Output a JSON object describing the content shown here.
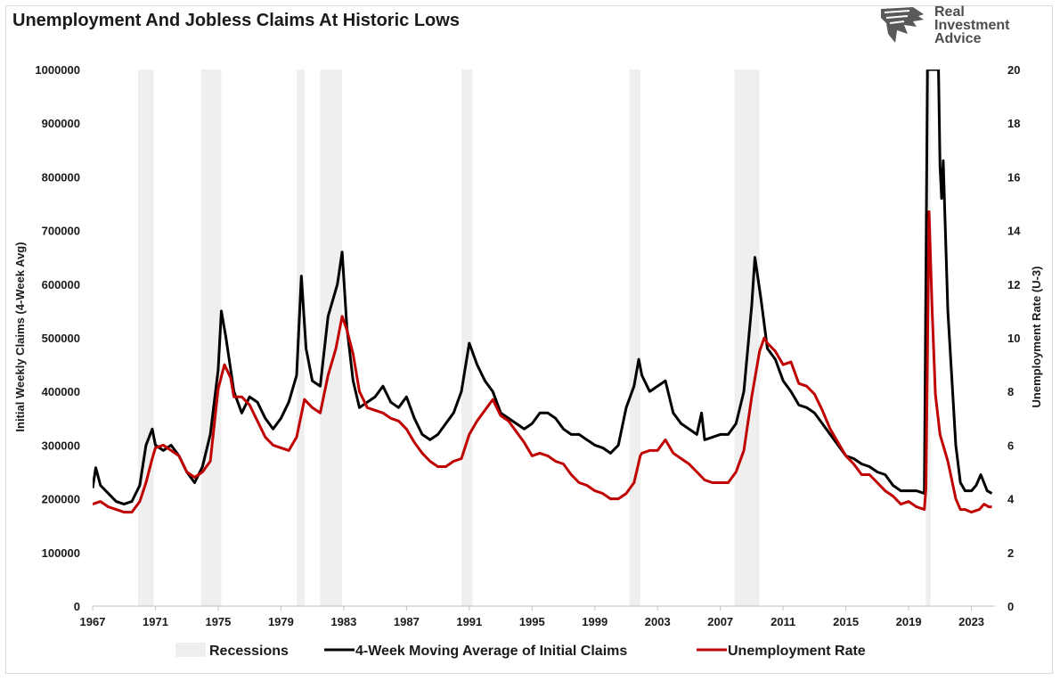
{
  "title": "Unemployment And Jobless Claims At Historic Lows",
  "logo": {
    "line1": "Real",
    "line2": "Investment",
    "line3": "Advice"
  },
  "chart_data": {
    "type": "line",
    "title": "Unemployment And Jobless Claims At Historic Lows",
    "x_range": [
      1967,
      2024.5
    ],
    "x_ticks": [
      1967,
      1971,
      1975,
      1979,
      1983,
      1987,
      1991,
      1995,
      1999,
      2003,
      2007,
      2011,
      2015,
      2019,
      2023
    ],
    "y_left": {
      "label": "Initial Weekly Claims (4-Week Avg)",
      "range": [
        0,
        1000000
      ],
      "ticks": [
        0,
        100000,
        200000,
        300000,
        400000,
        500000,
        600000,
        700000,
        800000,
        900000,
        1000000
      ]
    },
    "y_right": {
      "label": "Unemployment Rate (U-3)",
      "range": [
        0,
        20
      ],
      "ticks": [
        0,
        2,
        4,
        6,
        8,
        10,
        12,
        14,
        16,
        18,
        20
      ]
    },
    "grid": false,
    "legend_position": "bottom",
    "recessions": {
      "name": "Recessions",
      "color": "#efefef",
      "periods": [
        [
          1969.9,
          1970.9
        ],
        [
          1973.9,
          1975.2
        ],
        [
          1980.0,
          1980.5
        ],
        [
          1981.5,
          1982.9
        ],
        [
          1990.5,
          1991.2
        ],
        [
          2001.2,
          2001.9
        ],
        [
          2007.9,
          2009.5
        ],
        [
          2020.1,
          2020.4
        ]
      ]
    },
    "series": [
      {
        "name": "4-Week Moving Average of Initial Claims",
        "axis": "left",
        "color": "#000000",
        "points": [
          [
            1967.0,
            220000
          ],
          [
            1967.2,
            258000
          ],
          [
            1967.5,
            225000
          ],
          [
            1968.0,
            210000
          ],
          [
            1968.5,
            195000
          ],
          [
            1969.0,
            190000
          ],
          [
            1969.5,
            195000
          ],
          [
            1970.0,
            225000
          ],
          [
            1970.4,
            300000
          ],
          [
            1970.8,
            330000
          ],
          [
            1971.0,
            300000
          ],
          [
            1971.5,
            290000
          ],
          [
            1972.0,
            300000
          ],
          [
            1972.5,
            280000
          ],
          [
            1973.0,
            250000
          ],
          [
            1973.5,
            230000
          ],
          [
            1974.0,
            260000
          ],
          [
            1974.5,
            320000
          ],
          [
            1975.0,
            440000
          ],
          [
            1975.2,
            550000
          ],
          [
            1975.5,
            500000
          ],
          [
            1976.0,
            400000
          ],
          [
            1976.5,
            360000
          ],
          [
            1977.0,
            390000
          ],
          [
            1977.5,
            380000
          ],
          [
            1978.0,
            350000
          ],
          [
            1978.5,
            330000
          ],
          [
            1979.0,
            350000
          ],
          [
            1979.5,
            380000
          ],
          [
            1980.0,
            430000
          ],
          [
            1980.3,
            615000
          ],
          [
            1980.6,
            480000
          ],
          [
            1981.0,
            420000
          ],
          [
            1981.5,
            410000
          ],
          [
            1982.0,
            540000
          ],
          [
            1982.6,
            600000
          ],
          [
            1982.9,
            660000
          ],
          [
            1983.2,
            520000
          ],
          [
            1983.6,
            420000
          ],
          [
            1984.0,
            370000
          ],
          [
            1984.5,
            380000
          ],
          [
            1985.0,
            390000
          ],
          [
            1985.5,
            410000
          ],
          [
            1986.0,
            380000
          ],
          [
            1986.5,
            370000
          ],
          [
            1987.0,
            390000
          ],
          [
            1987.5,
            350000
          ],
          [
            1988.0,
            320000
          ],
          [
            1988.5,
            310000
          ],
          [
            1989.0,
            320000
          ],
          [
            1989.5,
            340000
          ],
          [
            1990.0,
            360000
          ],
          [
            1990.5,
            400000
          ],
          [
            1991.0,
            490000
          ],
          [
            1991.5,
            450000
          ],
          [
            1992.0,
            420000
          ],
          [
            1992.5,
            400000
          ],
          [
            1993.0,
            360000
          ],
          [
            1993.5,
            350000
          ],
          [
            1994.0,
            340000
          ],
          [
            1994.5,
            330000
          ],
          [
            1995.0,
            340000
          ],
          [
            1995.5,
            360000
          ],
          [
            1996.0,
            360000
          ],
          [
            1996.5,
            350000
          ],
          [
            1997.0,
            330000
          ],
          [
            1997.5,
            320000
          ],
          [
            1998.0,
            320000
          ],
          [
            1998.5,
            310000
          ],
          [
            1999.0,
            300000
          ],
          [
            1999.5,
            295000
          ],
          [
            2000.0,
            285000
          ],
          [
            2000.5,
            300000
          ],
          [
            2001.0,
            370000
          ],
          [
            2001.5,
            410000
          ],
          [
            2001.8,
            460000
          ],
          [
            2002.0,
            430000
          ],
          [
            2002.5,
            400000
          ],
          [
            2003.0,
            410000
          ],
          [
            2003.5,
            420000
          ],
          [
            2004.0,
            360000
          ],
          [
            2004.5,
            340000
          ],
          [
            2005.0,
            330000
          ],
          [
            2005.5,
            320000
          ],
          [
            2005.8,
            360000
          ],
          [
            2006.0,
            310000
          ],
          [
            2006.5,
            315000
          ],
          [
            2007.0,
            320000
          ],
          [
            2007.5,
            320000
          ],
          [
            2008.0,
            340000
          ],
          [
            2008.5,
            400000
          ],
          [
            2009.0,
            560000
          ],
          [
            2009.2,
            650000
          ],
          [
            2009.6,
            570000
          ],
          [
            2010.0,
            480000
          ],
          [
            2010.5,
            460000
          ],
          [
            2011.0,
            420000
          ],
          [
            2011.5,
            400000
          ],
          [
            2012.0,
            375000
          ],
          [
            2012.5,
            370000
          ],
          [
            2013.0,
            360000
          ],
          [
            2013.5,
            340000
          ],
          [
            2014.0,
            320000
          ],
          [
            2014.5,
            300000
          ],
          [
            2015.0,
            280000
          ],
          [
            2015.5,
            275000
          ],
          [
            2016.0,
            265000
          ],
          [
            2016.5,
            260000
          ],
          [
            2017.0,
            250000
          ],
          [
            2017.5,
            245000
          ],
          [
            2018.0,
            225000
          ],
          [
            2018.5,
            215000
          ],
          [
            2019.0,
            215000
          ],
          [
            2019.5,
            215000
          ],
          [
            2020.0,
            210000
          ],
          [
            2020.2,
            1000000
          ],
          [
            2020.9,
            1000000
          ],
          [
            2021.0,
            820000
          ],
          [
            2021.1,
            760000
          ],
          [
            2021.2,
            830000
          ],
          [
            2021.5,
            550000
          ],
          [
            2022.0,
            300000
          ],
          [
            2022.3,
            230000
          ],
          [
            2022.6,
            215000
          ],
          [
            2023.0,
            215000
          ],
          [
            2023.3,
            225000
          ],
          [
            2023.6,
            245000
          ],
          [
            2024.0,
            215000
          ],
          [
            2024.3,
            210000
          ]
        ]
      },
      {
        "name": "Unemployment Rate",
        "axis": "right",
        "color": "#c00000",
        "points": [
          [
            1967.0,
            3.8
          ],
          [
            1967.5,
            3.9
          ],
          [
            1968.0,
            3.7
          ],
          [
            1968.5,
            3.6
          ],
          [
            1969.0,
            3.5
          ],
          [
            1969.5,
            3.5
          ],
          [
            1970.0,
            3.9
          ],
          [
            1970.4,
            4.6
          ],
          [
            1970.8,
            5.5
          ],
          [
            1971.0,
            5.9
          ],
          [
            1971.5,
            6.0
          ],
          [
            1972.0,
            5.8
          ],
          [
            1972.5,
            5.6
          ],
          [
            1973.0,
            5.0
          ],
          [
            1973.5,
            4.8
          ],
          [
            1974.0,
            5.0
          ],
          [
            1974.5,
            5.4
          ],
          [
            1975.0,
            8.1
          ],
          [
            1975.4,
            9.0
          ],
          [
            1975.8,
            8.5
          ],
          [
            1976.0,
            7.8
          ],
          [
            1976.5,
            7.8
          ],
          [
            1977.0,
            7.5
          ],
          [
            1977.5,
            6.9
          ],
          [
            1978.0,
            6.3
          ],
          [
            1978.5,
            6.0
          ],
          [
            1979.0,
            5.9
          ],
          [
            1979.5,
            5.8
          ],
          [
            1980.0,
            6.3
          ],
          [
            1980.5,
            7.7
          ],
          [
            1981.0,
            7.4
          ],
          [
            1981.5,
            7.2
          ],
          [
            1982.0,
            8.6
          ],
          [
            1982.5,
            9.6
          ],
          [
            1982.9,
            10.8
          ],
          [
            1983.2,
            10.3
          ],
          [
            1983.6,
            9.4
          ],
          [
            1984.0,
            8.0
          ],
          [
            1984.5,
            7.4
          ],
          [
            1985.0,
            7.3
          ],
          [
            1985.5,
            7.2
          ],
          [
            1986.0,
            7.0
          ],
          [
            1986.5,
            6.9
          ],
          [
            1987.0,
            6.6
          ],
          [
            1987.5,
            6.1
          ],
          [
            1988.0,
            5.7
          ],
          [
            1988.5,
            5.4
          ],
          [
            1989.0,
            5.2
          ],
          [
            1989.5,
            5.2
          ],
          [
            1990.0,
            5.4
          ],
          [
            1990.5,
            5.5
          ],
          [
            1991.0,
            6.4
          ],
          [
            1991.5,
            6.9
          ],
          [
            1992.0,
            7.3
          ],
          [
            1992.5,
            7.7
          ],
          [
            1993.0,
            7.1
          ],
          [
            1993.5,
            6.9
          ],
          [
            1994.0,
            6.5
          ],
          [
            1994.5,
            6.1
          ],
          [
            1995.0,
            5.6
          ],
          [
            1995.5,
            5.7
          ],
          [
            1996.0,
            5.6
          ],
          [
            1996.5,
            5.4
          ],
          [
            1997.0,
            5.3
          ],
          [
            1997.5,
            4.9
          ],
          [
            1998.0,
            4.6
          ],
          [
            1998.5,
            4.5
          ],
          [
            1999.0,
            4.3
          ],
          [
            1999.5,
            4.2
          ],
          [
            2000.0,
            4.0
          ],
          [
            2000.5,
            4.0
          ],
          [
            2001.0,
            4.2
          ],
          [
            2001.5,
            4.6
          ],
          [
            2001.9,
            5.6
          ],
          [
            2002.0,
            5.7
          ],
          [
            2002.5,
            5.8
          ],
          [
            2003.0,
            5.8
          ],
          [
            2003.5,
            6.2
          ],
          [
            2004.0,
            5.7
          ],
          [
            2004.5,
            5.5
          ],
          [
            2005.0,
            5.3
          ],
          [
            2005.5,
            5.0
          ],
          [
            2006.0,
            4.7
          ],
          [
            2006.5,
            4.6
          ],
          [
            2007.0,
            4.6
          ],
          [
            2007.5,
            4.6
          ],
          [
            2008.0,
            5.0
          ],
          [
            2008.5,
            5.8
          ],
          [
            2009.0,
            7.8
          ],
          [
            2009.5,
            9.5
          ],
          [
            2009.8,
            10.0
          ],
          [
            2010.0,
            9.8
          ],
          [
            2010.5,
            9.5
          ],
          [
            2011.0,
            9.0
          ],
          [
            2011.5,
            9.1
          ],
          [
            2012.0,
            8.3
          ],
          [
            2012.5,
            8.2
          ],
          [
            2013.0,
            7.9
          ],
          [
            2013.5,
            7.3
          ],
          [
            2014.0,
            6.6
          ],
          [
            2014.5,
            6.1
          ],
          [
            2015.0,
            5.6
          ],
          [
            2015.5,
            5.3
          ],
          [
            2016.0,
            4.9
          ],
          [
            2016.5,
            4.9
          ],
          [
            2017.0,
            4.6
          ],
          [
            2017.5,
            4.3
          ],
          [
            2018.0,
            4.1
          ],
          [
            2018.5,
            3.8
          ],
          [
            2019.0,
            3.9
          ],
          [
            2019.5,
            3.7
          ],
          [
            2020.0,
            3.6
          ],
          [
            2020.1,
            4.4
          ],
          [
            2020.3,
            14.7
          ],
          [
            2020.5,
            11.0
          ],
          [
            2020.7,
            7.9
          ],
          [
            2021.0,
            6.4
          ],
          [
            2021.5,
            5.4
          ],
          [
            2022.0,
            4.0
          ],
          [
            2022.3,
            3.6
          ],
          [
            2022.6,
            3.6
          ],
          [
            2023.0,
            3.5
          ],
          [
            2023.5,
            3.6
          ],
          [
            2023.8,
            3.8
          ],
          [
            2024.1,
            3.7
          ],
          [
            2024.3,
            3.7
          ]
        ]
      }
    ],
    "legend": [
      "Recessions",
      "4-Week Moving Average of Initial Claims",
      "Unemployment Rate"
    ]
  }
}
